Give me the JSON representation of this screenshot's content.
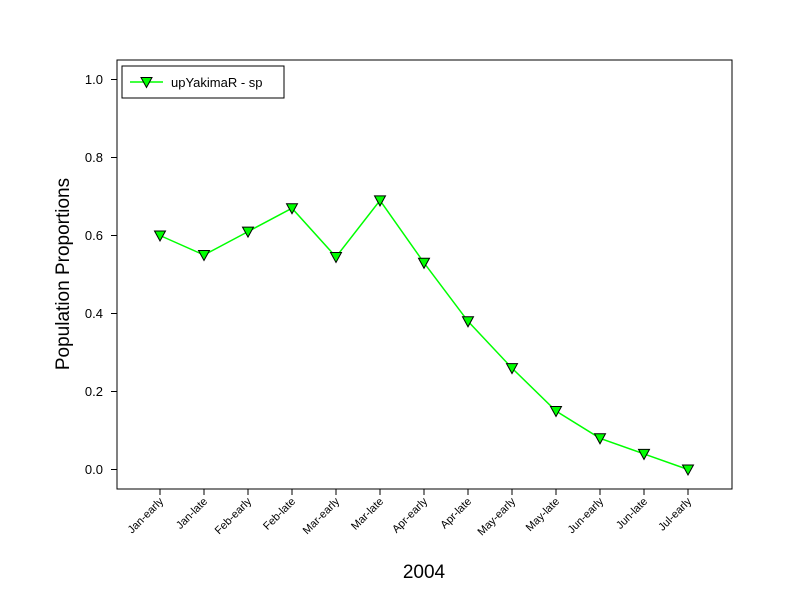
{
  "chart_data": {
    "type": "line",
    "title": "",
    "xlabel": "2004",
    "ylabel": "Population Proportions",
    "ylim": [
      -0.05,
      1.05
    ],
    "yticks": [
      "0.0",
      "0.2",
      "0.4",
      "0.6",
      "0.8",
      "1.0"
    ],
    "grid": false,
    "legend_position": "top-left",
    "categories": [
      "Jan-early",
      "Jan-late",
      "Feb-early",
      "Feb-late",
      "Mar-early",
      "Mar-late",
      "Apr-early",
      "Apr-late",
      "May-early",
      "May-late",
      "Jun-early",
      "Jun-late",
      "Jul-early"
    ],
    "series": [
      {
        "name": "upYakimaR - sp",
        "color": "#00ff00",
        "marker": "triangle-down",
        "values": [
          0.6,
          0.55,
          0.61,
          0.67,
          0.545,
          0.69,
          0.53,
          0.38,
          0.26,
          0.15,
          0.08,
          0.04,
          0.0
        ]
      }
    ]
  }
}
